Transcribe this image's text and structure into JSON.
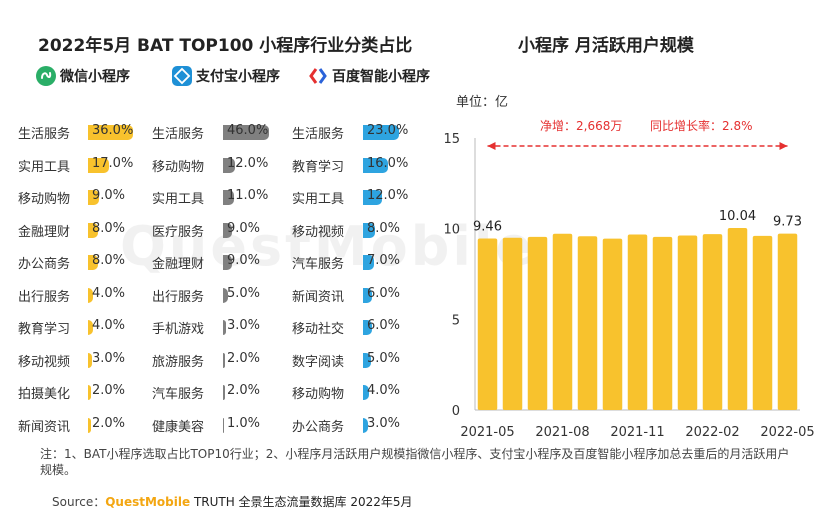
{
  "left_title": "2022年5月 BAT TOP100 小程序行业分类占比",
  "right_title": "小程序 月活跃用户规模",
  "legend": [
    {
      "label": "微信小程序",
      "icon": "wechat-miniprogram-icon",
      "color": "#2aae67"
    },
    {
      "label": "支付宝小程序",
      "icon": "alipay-miniprogram-icon",
      "color": "#1e90d6"
    },
    {
      "label": "百度智能小程序",
      "icon": "baidu-miniprogram-icon",
      "color": "#2b63d9"
    }
  ],
  "chart_data": [
    {
      "type": "bar",
      "orientation": "horizontal",
      "name": "微信小程序",
      "color": "#f8c22d",
      "categories": [
        "生活服务",
        "实用工具",
        "移动购物",
        "金融理财",
        "办公商务",
        "出行服务",
        "教育学习",
        "移动视频",
        "拍摄美化",
        "新闻资讯"
      ],
      "values": [
        36.0,
        17.0,
        9.0,
        8.0,
        8.0,
        4.0,
        4.0,
        3.0,
        2.0,
        2.0
      ],
      "labels": [
        "36.0%",
        "17.0%",
        "9.0%",
        "8.0%",
        "8.0%",
        "4.0%",
        "4.0%",
        "3.0%",
        "2.0%",
        "2.0%"
      ]
    },
    {
      "type": "bar",
      "orientation": "horizontal",
      "name": "支付宝小程序",
      "color": "#808080",
      "categories": [
        "生活服务",
        "移动购物",
        "实用工具",
        "医疗服务",
        "金融理财",
        "出行服务",
        "手机游戏",
        "旅游服务",
        "汽车服务",
        "健康美容"
      ],
      "values": [
        46.0,
        12.0,
        11.0,
        9.0,
        9.0,
        5.0,
        3.0,
        2.0,
        2.0,
        1.0
      ],
      "labels": [
        "46.0%",
        "12.0%",
        "11.0%",
        "9.0%",
        "9.0%",
        "5.0%",
        "3.0%",
        "2.0%",
        "2.0%",
        "1.0%"
      ]
    },
    {
      "type": "bar",
      "orientation": "horizontal",
      "name": "百度智能小程序",
      "color": "#2ea4e0",
      "categories": [
        "生活服务",
        "教育学习",
        "实用工具",
        "移动视频",
        "汽车服务",
        "新闻资讯",
        "移动社交",
        "数字阅读",
        "移动购物",
        "办公商务"
      ],
      "values": [
        23.0,
        16.0,
        12.0,
        8.0,
        7.0,
        6.0,
        6.0,
        5.0,
        4.0,
        3.0
      ],
      "labels": [
        "23.0%",
        "16.0%",
        "12.0%",
        "8.0%",
        "7.0%",
        "6.0%",
        "6.0%",
        "5.0%",
        "4.0%",
        "3.0%"
      ]
    },
    {
      "type": "bar",
      "title": "小程序 月活跃用户规模",
      "unit_label": "单位：亿",
      "color": "#f8c22d",
      "x": [
        "2021-05",
        "2021-06",
        "2021-07",
        "2021-08",
        "2021-09",
        "2021-10",
        "2021-11",
        "2021-12",
        "2022-01",
        "2022-02",
        "2022-03",
        "2022-04",
        "2022-05"
      ],
      "values": [
        9.46,
        9.5,
        9.55,
        9.72,
        9.58,
        9.45,
        9.68,
        9.55,
        9.62,
        9.7,
        10.04,
        9.6,
        9.73
      ],
      "value_labels": [
        "9.46",
        "",
        "",
        "",
        "",
        "",
        "",
        "",
        "",
        "",
        "10.04",
        "",
        "9.73"
      ],
      "x_tick_labels": [
        "2021-05",
        "",
        "",
        "2021-08",
        "",
        "",
        "2021-11",
        "",
        "",
        "2022-02",
        "",
        "",
        "2022-05"
      ],
      "ylim": [
        0,
        15
      ],
      "yticks": [
        0,
        5,
        10,
        15
      ],
      "annotation_net": "净增：2,668万",
      "annotation_yoy": "同比增长率：2.8%",
      "annotation_color": "#e53030"
    }
  ],
  "footnote": "注：1、BAT小程序选取占比TOP10行业；2、小程序月活跃用户规模指微信小程序、支付宝小程序及百度智能小程序加总去重后的月活跃用户规模。",
  "source": {
    "prefix": "Source：",
    "brand": "QuestMobile",
    "suffix": " TRUTH 全景生态流量数据库 2022年5月"
  },
  "watermark": "QuestMobile"
}
